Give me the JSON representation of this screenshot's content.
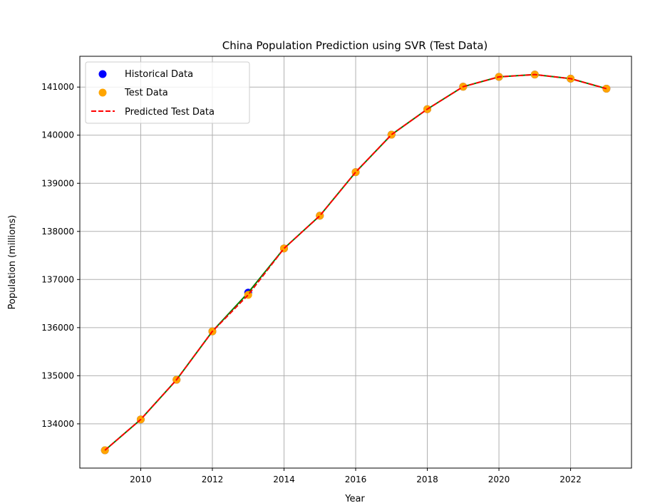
{
  "chart_data": {
    "type": "scatter",
    "title": "China Population Prediction using SVR (Test Data)",
    "xlabel": "Year",
    "ylabel": "Population (millions)",
    "xlim": [
      2008.3,
      2023.7
    ],
    "ylim": [
      133080,
      141640
    ],
    "xticks": [
      2010,
      2012,
      2014,
      2016,
      2018,
      2020,
      2022
    ],
    "yticks": [
      134000,
      135000,
      136000,
      137000,
      138000,
      139000,
      140000,
      141000
    ],
    "grid": true,
    "legend_position": "upper-left",
    "legend": [
      {
        "label": "Historical Data",
        "marker": "dot",
        "color": "#0000ff"
      },
      {
        "label": "Test Data",
        "marker": "dot",
        "color": "#ffa500"
      },
      {
        "label": "Predicted Test Data",
        "marker": "dashed-line",
        "color": "#ff0000"
      }
    ],
    "series": [
      {
        "name": "Historical Data",
        "kind": "scatter",
        "color": "#0000ff",
        "x": [
          2009,
          2010,
          2011,
          2012,
          2013,
          2014,
          2015,
          2016,
          2017,
          2018,
          2019,
          2020,
          2021,
          2022,
          2023
        ],
        "y": [
          133450,
          134091,
          134916,
          135922,
          136726,
          137646,
          138326,
          139232,
          140011,
          140541,
          141008,
          141212,
          141260,
          141175,
          140967
        ]
      },
      {
        "kind": "line",
        "style": "solid",
        "color": "#008000",
        "x": [
          2009,
          2010,
          2011,
          2012,
          2013,
          2014,
          2015,
          2016,
          2017,
          2018,
          2019,
          2020,
          2021,
          2022,
          2023
        ],
        "y": [
          133450,
          134091,
          134916,
          135922,
          136726,
          137646,
          138326,
          139232,
          140011,
          140541,
          141008,
          141212,
          141260,
          141175,
          140967
        ]
      },
      {
        "name": "Test Data",
        "kind": "scatter",
        "color": "#ffa500",
        "x": [
          2009,
          2010,
          2011,
          2012,
          2013,
          2014,
          2015,
          2016,
          2017,
          2018,
          2019,
          2020,
          2021,
          2022,
          2023
        ],
        "y": [
          133450,
          134091,
          134916,
          135922,
          136680,
          137646,
          138326,
          139232,
          140011,
          140541,
          141008,
          141212,
          141260,
          141175,
          140967
        ]
      },
      {
        "name": "Predicted Test Data",
        "kind": "line",
        "style": "dashed",
        "color": "#ff0000",
        "x": [
          2009,
          2010,
          2011,
          2012,
          2013,
          2014,
          2015,
          2016,
          2017,
          2018,
          2019,
          2020,
          2021,
          2022,
          2023
        ],
        "y": [
          133450,
          134091,
          134916,
          135922,
          136680,
          137646,
          138326,
          139232,
          140011,
          140541,
          141008,
          141212,
          141260,
          141175,
          140967
        ]
      }
    ]
  }
}
